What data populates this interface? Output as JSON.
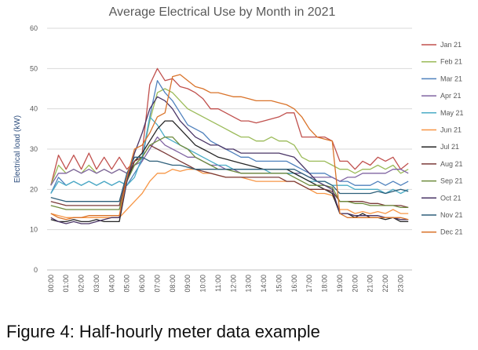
{
  "chart_data": {
    "type": "line",
    "title": "Average Electrical Use by Month in 2021",
    "xlabel": "",
    "ylabel": "Electrical load (kW)",
    "ylim": [
      0,
      60
    ],
    "yticks": [
      0,
      10,
      20,
      30,
      40,
      50,
      60
    ],
    "grid": true,
    "legend": "right",
    "x": [
      "00:00",
      "00:30",
      "01:00",
      "01:30",
      "02:00",
      "02:30",
      "03:00",
      "03:30",
      "04:00",
      "04:30",
      "05:00",
      "05:30",
      "06:00",
      "06:30",
      "07:00",
      "07:30",
      "08:00",
      "08:30",
      "09:00",
      "09:30",
      "10:00",
      "10:30",
      "11:00",
      "11:30",
      "12:00",
      "12:30",
      "13:00",
      "13:30",
      "14:00",
      "14:30",
      "15:00",
      "15:30",
      "16:00",
      "16:30",
      "17:00",
      "17:30",
      "18:00",
      "18:30",
      "19:00",
      "19:30",
      "20:00",
      "20:30",
      "21:00",
      "21:30",
      "22:00",
      "22:30",
      "23:00",
      "23:30"
    ],
    "xticklabels": [
      "00:00",
      "01:00",
      "02:00",
      "03:00",
      "04:00",
      "05:00",
      "06:00",
      "07:00",
      "08:00",
      "09:00",
      "10:00",
      "11:00",
      "12:00",
      "13:00",
      "14:00",
      "15:00",
      "16:00",
      "17:00",
      "18:00",
      "19:00",
      "20:00",
      "21:00",
      "22:00",
      "23:00"
    ],
    "series": [
      {
        "name": "Jan 21",
        "color": "#C0504D",
        "values": [
          21,
          28.5,
          25,
          28.5,
          25,
          29,
          25,
          28,
          25,
          28,
          25,
          27,
          29,
          46,
          50,
          47,
          47.5,
          45.5,
          45,
          44,
          42.5,
          40,
          40,
          39,
          38,
          37,
          37,
          36.5,
          37,
          37.5,
          38,
          39,
          39,
          33,
          33,
          33,
          33,
          32,
          27,
          27,
          25,
          27,
          26,
          28,
          27,
          28,
          25,
          26.5
        ]
      },
      {
        "name": "Feb 21",
        "color": "#9BBB59",
        "values": [
          21,
          26,
          24,
          25,
          24,
          26,
          24,
          25,
          24,
          25,
          24,
          26,
          28,
          37,
          44,
          45,
          44,
          42,
          40,
          39,
          38,
          37,
          36,
          35,
          34,
          33,
          33,
          32,
          32,
          33,
          32,
          32,
          31,
          28,
          27,
          27,
          27,
          26,
          25,
          25,
          24,
          25,
          25,
          26,
          25,
          26,
          24,
          25
        ]
      },
      {
        "name": "Mar 21",
        "color": "#4F81BD",
        "values": [
          19,
          23,
          21,
          22,
          21,
          22,
          21,
          22,
          21,
          22,
          21,
          24,
          27,
          38,
          47,
          44,
          42,
          39,
          36,
          35,
          34,
          32,
          31,
          30,
          29,
          28,
          28,
          27,
          27,
          27,
          27,
          27,
          26,
          25,
          24,
          24,
          24,
          23,
          22,
          22,
          21,
          21,
          21,
          22,
          21,
          22,
          21,
          22
        ]
      },
      {
        "name": "Apr 21",
        "color": "#8064A2",
        "values": [
          21,
          24,
          24,
          25,
          24,
          25,
          24,
          25,
          24,
          25,
          24,
          26,
          27,
          30,
          33,
          31,
          30,
          29,
          28,
          28,
          27,
          26,
          26,
          25,
          25,
          24,
          24,
          24,
          24,
          24,
          24,
          24,
          24,
          24,
          23,
          23,
          23,
          23,
          22,
          23,
          23,
          24,
          24,
          24,
          24,
          25,
          25,
          24
        ]
      },
      {
        "name": "May 21",
        "color": "#4BACC6",
        "values": [
          19,
          22,
          21,
          22,
          21,
          22,
          21,
          22,
          21,
          22,
          21,
          23,
          28,
          38,
          36,
          33,
          32,
          31,
          30,
          29,
          28,
          27,
          26,
          26,
          25,
          25,
          25,
          25,
          25,
          24,
          24,
          24,
          24,
          23,
          22,
          22,
          22,
          21,
          21,
          21,
          20,
          20,
          20,
          20,
          19,
          20,
          19,
          20
        ]
      },
      {
        "name": "Jun 21",
        "color": "#F79646",
        "values": [
          14,
          13.5,
          13,
          13,
          13,
          13,
          13,
          13,
          13,
          13,
          15,
          17,
          19,
          22,
          24,
          24,
          25,
          24.5,
          25,
          25,
          24,
          24,
          23.5,
          23,
          23,
          23,
          22.5,
          22,
          22,
          22,
          22,
          22,
          22,
          21,
          20,
          19,
          19,
          18.5,
          15,
          15,
          14,
          14.5,
          14,
          14.5,
          14,
          15,
          14,
          14
        ]
      },
      {
        "name": "Jul 21",
        "color": "#262626",
        "values": [
          12.5,
          12,
          12,
          12.5,
          12,
          12,
          12.5,
          12,
          12,
          12,
          22,
          27,
          29,
          32,
          35,
          37,
          37,
          35,
          33,
          31,
          30,
          29,
          28,
          27.5,
          27,
          26.5,
          26,
          25.5,
          25,
          25,
          25,
          25,
          24,
          23,
          22,
          21,
          20,
          19,
          14,
          14,
          13,
          14,
          13,
          13,
          12.5,
          13,
          12,
          12
        ]
      },
      {
        "name": "Aug 21",
        "color": "#7B3B39",
        "values": [
          17,
          16.5,
          16,
          16,
          16,
          16,
          16,
          16,
          16,
          16,
          23,
          27,
          28,
          31,
          30,
          29,
          28,
          27,
          26,
          25,
          24.5,
          24,
          23.5,
          23,
          23,
          23,
          23,
          23,
          23,
          23,
          23,
          22,
          22,
          21,
          20,
          20,
          20,
          19.5,
          17,
          17,
          17,
          17,
          16.5,
          16.5,
          16,
          16,
          16,
          15.5
        ]
      },
      {
        "name": "Sep 21",
        "color": "#6E8B3D",
        "values": [
          16,
          15.5,
          15,
          15,
          15,
          15,
          15,
          15,
          15,
          15,
          22,
          26,
          28,
          31,
          32,
          33,
          33,
          31,
          30,
          28,
          27,
          26,
          25,
          25,
          24.5,
          24,
          24,
          24,
          24,
          24,
          24,
          24,
          23,
          22,
          21,
          21,
          21,
          20.5,
          17,
          17,
          16.5,
          16.5,
          16,
          16,
          16,
          16,
          15.5,
          15.5
        ]
      },
      {
        "name": "Oct 21",
        "color": "#4A3566",
        "values": [
          13,
          12,
          11.5,
          12,
          11.5,
          11.5,
          12,
          12.5,
          13,
          13,
          22,
          29,
          34,
          40,
          43,
          42,
          40,
          37,
          35,
          33,
          32,
          31,
          31,
          30,
          30,
          29,
          29,
          29,
          29,
          29,
          29,
          28.5,
          28,
          26,
          24,
          22,
          21,
          20,
          14,
          14,
          13.5,
          13.5,
          13.5,
          13.5,
          13,
          13,
          12.5,
          12.5
        ]
      },
      {
        "name": "Nov 21",
        "color": "#2E5F7A",
        "values": [
          18,
          17.5,
          17,
          17,
          17,
          17,
          17,
          17,
          17,
          17,
          24,
          28,
          28,
          27,
          27,
          26.5,
          26,
          26,
          25.5,
          25,
          25,
          25,
          25,
          25,
          25,
          25,
          25,
          25,
          25,
          25,
          25,
          25,
          25,
          24,
          23,
          22,
          22,
          21,
          19,
          19,
          19,
          19,
          19,
          19.5,
          19,
          19.5,
          20,
          19.5
        ]
      },
      {
        "name": "Dec 21",
        "color": "#D9732A",
        "values": [
          14,
          13,
          12.5,
          13,
          13,
          13.5,
          13.5,
          13.5,
          13.5,
          13.5,
          23,
          30,
          31,
          34,
          38,
          39,
          48,
          48.5,
          47,
          45.5,
          45,
          44,
          44,
          43.5,
          43,
          43,
          42.5,
          42,
          42,
          42,
          41.5,
          41,
          40,
          38,
          35,
          33,
          32.5,
          32,
          14,
          13,
          13,
          13,
          13,
          13,
          13,
          13,
          13,
          12.5
        ]
      }
    ]
  },
  "caption": "Figure 4: Half-hourly meter data example"
}
